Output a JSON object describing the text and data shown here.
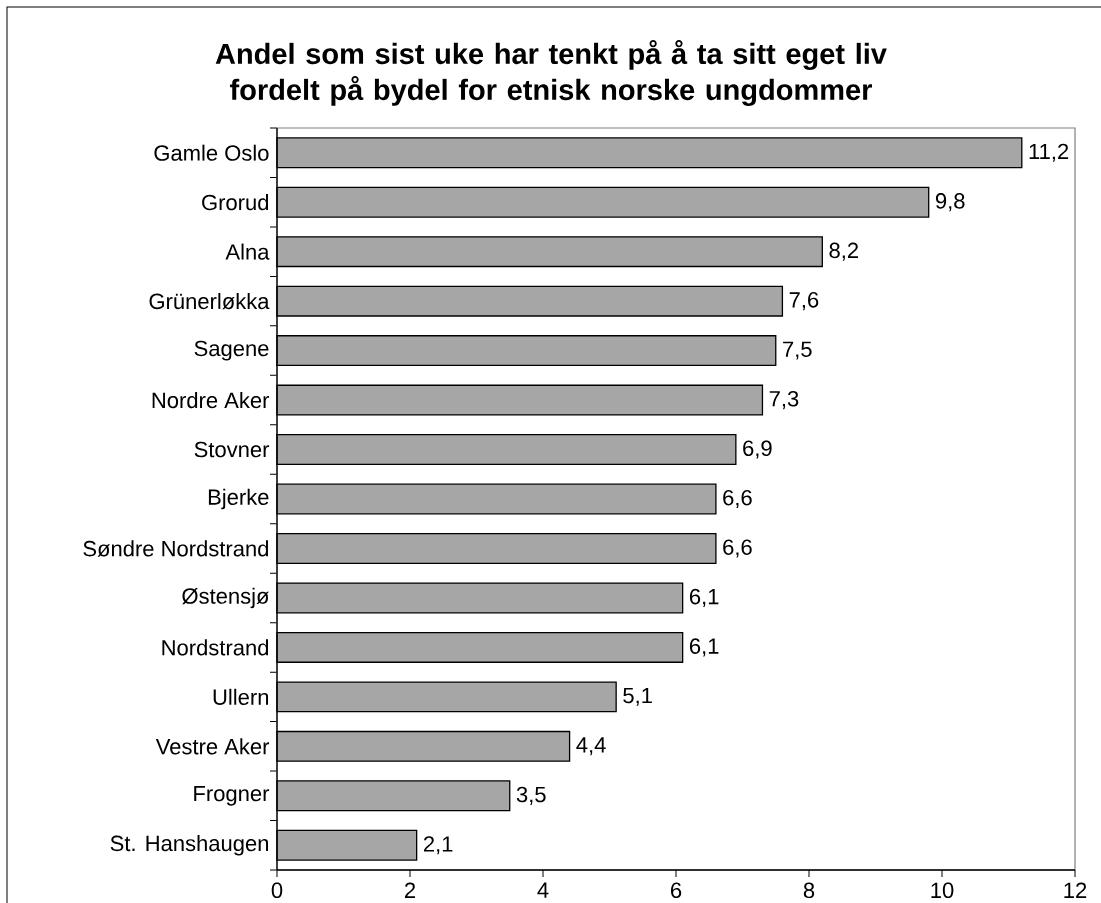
{
  "chart_data": {
    "type": "bar",
    "orientation": "horizontal",
    "title": "Andel som sist uke har tenkt på å ta sitt eget liv fordelt på bydel for etnisk norske ungdommer",
    "categories": [
      "Gamle Oslo",
      "Grorud",
      "Alna",
      "Grünerløkka",
      "Sagene",
      "Nordre Aker",
      "Stovner",
      "Bjerke",
      "Søndre Nordstrand",
      "Østensjø",
      "Nordstrand",
      "Ullern",
      "Vestre Aker",
      "Frogner",
      "St. Hanshaugen"
    ],
    "values": [
      11.2,
      9.8,
      8.2,
      7.6,
      7.5,
      7.3,
      6.9,
      6.6,
      6.6,
      6.1,
      6.1,
      5.1,
      4.4,
      3.5,
      2.1
    ],
    "value_labels": [
      "11,2",
      "9,8",
      "8,2",
      "7,6",
      "7,5",
      "7,3",
      "6,9",
      "6,6",
      "6,6",
      "6,1",
      "6,1",
      "5,1",
      "4,4",
      "3,5",
      "2,1"
    ],
    "color": "#a6a6a6",
    "xlim": [
      0,
      12
    ],
    "xticks": [
      0,
      2,
      4,
      6,
      8,
      10,
      12
    ]
  }
}
